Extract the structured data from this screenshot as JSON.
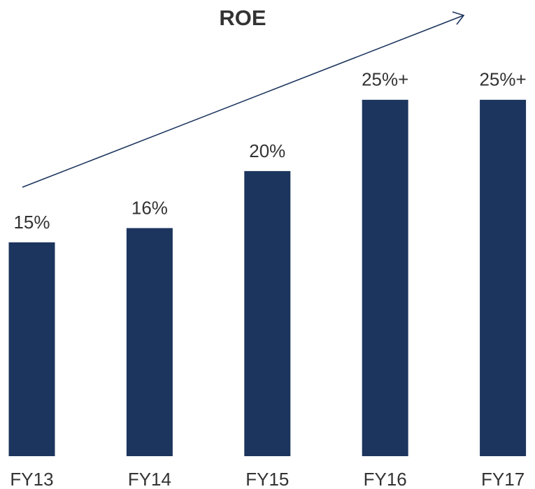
{
  "chart_data": {
    "type": "bar",
    "title": "ROE",
    "categories": [
      "FY13",
      "FY14",
      "FY15",
      "FY16",
      "FY17"
    ],
    "values": [
      15,
      16,
      20,
      25,
      25
    ],
    "value_labels": [
      "15%",
      "16%",
      "20%",
      "25%+",
      "25%+"
    ],
    "color": "#1c355e",
    "ylim": [
      0,
      32
    ]
  }
}
